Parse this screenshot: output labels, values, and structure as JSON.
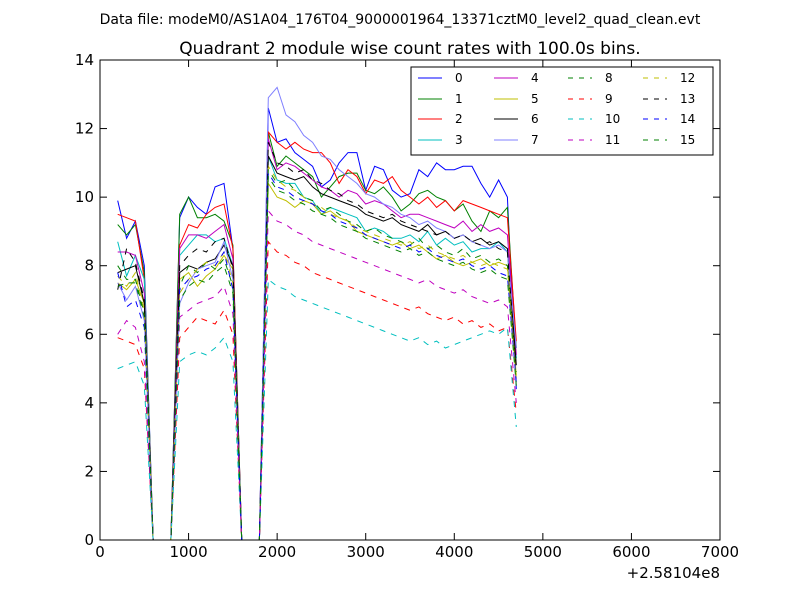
{
  "figure": {
    "suptitle": "Data file: modeM0/AS1A04_176T04_9000001964_13371cztM0_level2_quad_clean.evt"
  },
  "chart_data": {
    "type": "line",
    "title": "Quadrant 2 module wise count rates with 100.0s bins.",
    "xlabel": "",
    "ylabel": "",
    "x_offset_label": "+2.58104e8",
    "xlim": [
      0,
      7000
    ],
    "ylim": [
      0,
      14
    ],
    "x_ticks": [
      0,
      1000,
      2000,
      3000,
      4000,
      5000,
      6000,
      7000
    ],
    "y_ticks": [
      0,
      2,
      4,
      6,
      8,
      10,
      12,
      14
    ],
    "x_tick_labels": [
      "0",
      "1000",
      "2000",
      "3000",
      "4000",
      "5000",
      "6000",
      "7000"
    ],
    "y_tick_labels": [
      "0",
      "2",
      "4",
      "6",
      "8",
      "10",
      "12",
      "14"
    ],
    "grid": false,
    "legend": {
      "placement": "top-right",
      "columns": 4
    },
    "series": [
      {
        "name": "0",
        "color": "#0000ff",
        "dash": "solid",
        "values": [
          9.9,
          8.8,
          9.3,
          8.0,
          0,
          0,
          0,
          9.4,
          10.0,
          9.7,
          9.5,
          10.3,
          10.4,
          8.5,
          0,
          0,
          0,
          12.6,
          11.6,
          11.7,
          11.3,
          11.1,
          10.9,
          10.3,
          10.5,
          11.0,
          11.3,
          11.3,
          10.2,
          10.9,
          10.8,
          10.2,
          10.0,
          10.1,
          10.8,
          10.6,
          11.0,
          10.8,
          10.8,
          10.9,
          10.9,
          10.4,
          10.0,
          10.5,
          10.0,
          4.4
        ]
      },
      {
        "name": "1",
        "color": "#008000",
        "dash": "solid",
        "values": [
          9.2,
          8.9,
          9.2,
          7.8,
          0,
          0,
          0,
          9.5,
          10.0,
          9.4,
          9.4,
          9.5,
          9.3,
          8.6,
          0,
          0,
          0,
          11.9,
          10.9,
          11.2,
          11.0,
          10.8,
          10.6,
          10.0,
          10.3,
          10.6,
          10.7,
          10.7,
          10.2,
          10.1,
          10.3,
          10.0,
          9.6,
          9.8,
          10.1,
          10.2,
          10.0,
          9.9,
          9.6,
          9.8,
          9.3,
          9.0,
          9.6,
          9.4,
          9.7,
          5.6
        ]
      },
      {
        "name": "2",
        "color": "#ff0000",
        "dash": "solid",
        "values": [
          9.5,
          9.4,
          9.3,
          7.6,
          0,
          0,
          0,
          8.6,
          9.2,
          9.1,
          9.5,
          9.7,
          9.8,
          8.5,
          0,
          0,
          0,
          11.9,
          11.6,
          11.4,
          11.6,
          11.4,
          11.3,
          11.3,
          11.0,
          10.4,
          10.8,
          10.6,
          10.1,
          10.5,
          10.4,
          10.6,
          10.2,
          10.0,
          9.8,
          10.0,
          9.7,
          9.9,
          9.6,
          9.9,
          9.8,
          9.7,
          9.6,
          9.5,
          9.4,
          5.8
        ]
      },
      {
        "name": "3",
        "color": "#00bfbf",
        "dash": "solid",
        "values": [
          8.7,
          7.7,
          8.3,
          7.6,
          0,
          0,
          0,
          8.3,
          8.6,
          8.9,
          8.9,
          8.7,
          8.8,
          8.0,
          0,
          0,
          0,
          11.2,
          10.5,
          10.4,
          10.4,
          10.0,
          9.9,
          9.5,
          9.7,
          9.6,
          9.5,
          9.4,
          9.0,
          9.1,
          9.0,
          8.8,
          8.8,
          8.9,
          8.7,
          9.0,
          8.6,
          8.8,
          8.6,
          8.7,
          8.4,
          8.5,
          8.5,
          8.7,
          8.4,
          5.3
        ]
      },
      {
        "name": "4",
        "color": "#bf00bf",
        "dash": "solid",
        "values": [
          8.4,
          8.4,
          8.3,
          7.2,
          0,
          0,
          0,
          8.5,
          8.9,
          8.9,
          8.8,
          9.0,
          9.2,
          8.2,
          0,
          0,
          0,
          11.7,
          10.8,
          11.0,
          10.9,
          10.7,
          10.5,
          10.3,
          10.2,
          10.0,
          10.2,
          10.1,
          9.8,
          9.9,
          9.8,
          9.6,
          9.4,
          9.5,
          9.5,
          9.4,
          9.3,
          9.2,
          9.1,
          9.3,
          9.0,
          9.2,
          9.0,
          9.1,
          8.9,
          5.4
        ]
      },
      {
        "name": "5",
        "color": "#bfbf00",
        "dash": "solid",
        "values": [
          7.5,
          7.3,
          7.6,
          6.9,
          0,
          0,
          0,
          7.6,
          7.8,
          7.4,
          7.7,
          7.9,
          8.3,
          7.9,
          0,
          0,
          0,
          10.4,
          10.0,
          9.9,
          9.7,
          9.9,
          9.8,
          9.5,
          9.6,
          9.4,
          9.3,
          9.0,
          8.9,
          8.8,
          8.7,
          8.6,
          8.7,
          8.5,
          8.6,
          8.4,
          8.2,
          8.3,
          8.1,
          8.0,
          8.1,
          8.2,
          8.0,
          8.1,
          8.0,
          4.8
        ]
      },
      {
        "name": "6",
        "color": "#000000",
        "dash": "solid",
        "values": [
          7.8,
          7.9,
          8.0,
          6.9,
          0,
          0,
          0,
          7.8,
          8.0,
          7.9,
          8.1,
          8.2,
          8.6,
          8.0,
          0,
          0,
          0,
          11.2,
          10.7,
          10.6,
          10.5,
          10.6,
          10.3,
          10.1,
          10.0,
          9.9,
          9.8,
          9.7,
          9.5,
          9.4,
          9.3,
          9.4,
          9.2,
          9.1,
          9.0,
          9.2,
          8.9,
          9.0,
          8.8,
          8.9,
          8.7,
          8.8,
          8.6,
          8.7,
          8.5,
          5.1
        ]
      },
      {
        "name": "7",
        "color": "#8080ff",
        "dash": "solid",
        "values": [
          7.5,
          7.0,
          7.4,
          6.4,
          0,
          0,
          0,
          6.9,
          7.5,
          7.9,
          8.0,
          8.1,
          8.7,
          7.6,
          0,
          0,
          0,
          12.9,
          13.2,
          12.4,
          12.2,
          11.8,
          11.6,
          11.2,
          11.1,
          10.8,
          10.6,
          10.4,
          10.1,
          10.0,
          9.8,
          9.7,
          9.5,
          9.4,
          9.2,
          9.3,
          9.1,
          9.0,
          8.8,
          8.9,
          8.7,
          8.6,
          8.5,
          8.6,
          8.4,
          5.6
        ]
      },
      {
        "name": "8",
        "color": "#008000",
        "dash": "dashed",
        "values": [
          8.0,
          7.6,
          7.6,
          6.6,
          0,
          0,
          0,
          7.4,
          8.0,
          7.8,
          8.1,
          7.9,
          8.2,
          7.4,
          0,
          0,
          0,
          10.8,
          10.4,
          10.5,
          10.2,
          10.0,
          9.9,
          9.6,
          9.7,
          9.5,
          9.3,
          9.2,
          9.0,
          9.1,
          8.9,
          8.8,
          8.7,
          8.6,
          8.8,
          8.5,
          8.6,
          8.4,
          8.3,
          8.5,
          8.2,
          8.3,
          8.1,
          8.2,
          8.0,
          4.9
        ]
      },
      {
        "name": "9",
        "color": "#ff0000",
        "dash": "dashed",
        "values": [
          5.9,
          5.8,
          5.7,
          5.0,
          0,
          0,
          0,
          5.9,
          6.2,
          6.5,
          6.4,
          6.3,
          6.7,
          6.0,
          0,
          0,
          0,
          8.7,
          8.4,
          8.3,
          8.1,
          8.0,
          7.8,
          7.7,
          7.6,
          7.5,
          7.4,
          7.3,
          7.2,
          7.1,
          7.0,
          6.9,
          6.8,
          6.7,
          6.8,
          6.6,
          6.5,
          6.4,
          6.5,
          6.3,
          6.4,
          6.2,
          6.3,
          6.1,
          6.2,
          3.7
        ]
      },
      {
        "name": "10",
        "color": "#00bfbf",
        "dash": "dashed",
        "values": [
          5.0,
          5.1,
          5.2,
          4.5,
          0,
          0,
          0,
          5.2,
          5.4,
          5.5,
          5.4,
          5.6,
          5.9,
          5.2,
          0,
          0,
          0,
          7.6,
          7.4,
          7.3,
          7.1,
          7.0,
          6.9,
          6.8,
          6.7,
          6.6,
          6.5,
          6.4,
          6.3,
          6.2,
          6.1,
          6.0,
          5.9,
          5.8,
          5.9,
          5.7,
          5.8,
          5.6,
          5.7,
          5.8,
          5.9,
          6.0,
          6.1,
          6.0,
          6.2,
          3.3
        ]
      },
      {
        "name": "11",
        "color": "#bf00bf",
        "dash": "dashed",
        "values": [
          6.0,
          6.4,
          6.2,
          5.2,
          0,
          0,
          0,
          6.5,
          6.7,
          6.9,
          7.0,
          7.1,
          7.4,
          6.6,
          0,
          0,
          0,
          9.6,
          9.3,
          9.2,
          9.0,
          8.9,
          8.7,
          8.6,
          8.5,
          8.4,
          8.3,
          8.2,
          8.1,
          8.0,
          7.9,
          7.8,
          7.7,
          7.6,
          7.5,
          7.6,
          7.4,
          7.3,
          7.2,
          7.3,
          7.1,
          7.0,
          6.9,
          7.0,
          6.8,
          4.0
        ]
      },
      {
        "name": "12",
        "color": "#bfbf00",
        "dash": "dashed",
        "values": [
          7.7,
          7.4,
          7.8,
          6.7,
          0,
          0,
          0,
          7.2,
          7.6,
          7.9,
          8.1,
          8.0,
          8.4,
          7.5,
          0,
          0,
          0,
          10.9,
          10.5,
          10.3,
          10.2,
          10.0,
          9.8,
          9.7,
          9.5,
          9.4,
          9.3,
          9.1,
          9.0,
          8.9,
          8.8,
          8.7,
          8.6,
          8.7,
          8.5,
          8.6,
          8.4,
          8.3,
          8.2,
          8.3,
          8.1,
          8.0,
          8.1,
          8.0,
          7.9,
          4.7
        ]
      },
      {
        "name": "13",
        "color": "#000000",
        "dash": "dashed",
        "values": [
          7.3,
          8.5,
          8.1,
          7.0,
          0,
          0,
          0,
          8.0,
          8.3,
          8.5,
          8.4,
          8.7,
          8.8,
          7.9,
          0,
          0,
          0,
          11.6,
          11.0,
          10.9,
          10.7,
          10.8,
          10.5,
          10.4,
          10.2,
          10.1,
          9.9,
          9.8,
          9.6,
          9.5,
          9.4,
          9.5,
          9.3,
          9.2,
          9.1,
          9.0,
          8.9,
          9.0,
          8.8,
          8.9,
          8.7,
          8.6,
          8.7,
          8.5,
          8.4,
          5.0
        ]
      },
      {
        "name": "14",
        "color": "#0000ff",
        "dash": "dashed",
        "values": [
          7.8,
          6.8,
          7.0,
          6.2,
          0,
          0,
          0,
          7.3,
          7.6,
          7.7,
          7.9,
          8.0,
          8.4,
          7.3,
          0,
          0,
          0,
          10.7,
          10.3,
          10.2,
          10.0,
          9.9,
          9.8,
          9.6,
          9.5,
          9.3,
          9.2,
          9.1,
          8.9,
          8.8,
          8.7,
          8.6,
          8.5,
          8.6,
          8.4,
          8.5,
          8.3,
          8.2,
          8.1,
          8.2,
          8.0,
          7.9,
          8.0,
          7.8,
          7.7,
          4.6
        ]
      },
      {
        "name": "15",
        "color": "#008000",
        "dash": "dashed",
        "values": [
          7.4,
          7.5,
          7.5,
          6.5,
          0,
          0,
          0,
          7.0,
          7.4,
          7.6,
          7.5,
          7.8,
          8.0,
          7.2,
          0,
          0,
          0,
          10.6,
          10.2,
          10.1,
          9.9,
          9.8,
          9.6,
          9.5,
          9.4,
          9.2,
          9.1,
          9.0,
          8.8,
          8.7,
          8.6,
          8.5,
          8.4,
          8.5,
          8.3,
          8.4,
          8.2,
          8.1,
          8.0,
          8.1,
          7.9,
          7.8,
          7.9,
          7.7,
          7.6,
          4.5
        ]
      }
    ]
  }
}
